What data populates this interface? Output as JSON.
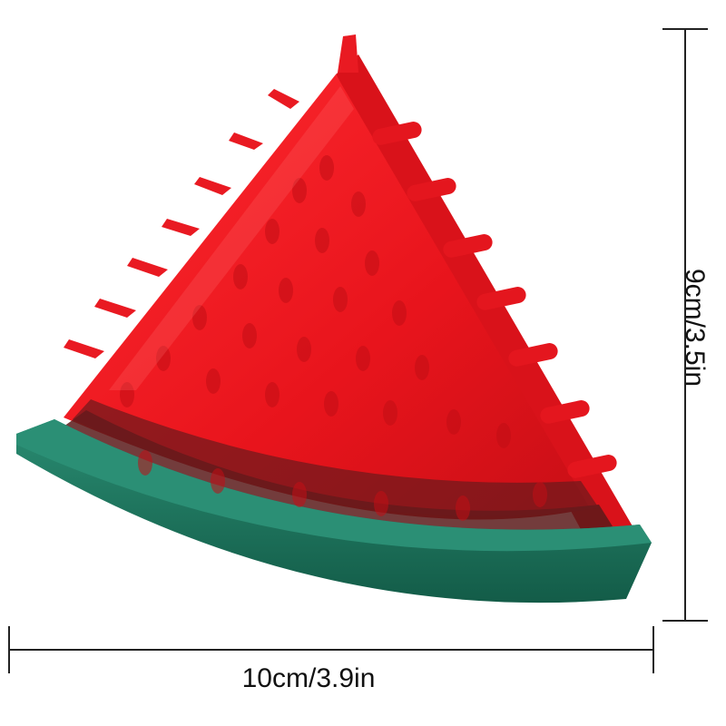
{
  "product": {
    "name_icon": "watermelon-slice-chew-toy",
    "colors": {
      "flesh": "#e8141c",
      "flesh_dark": "#b30d12",
      "rind": "#1d7a62",
      "rind_dark": "#13604c",
      "seed_band": "#5a1a1a"
    }
  },
  "dimensions": {
    "width_label": "10cm/3.9in",
    "height_label": "9cm/3.5in",
    "line_color": "#222222"
  }
}
